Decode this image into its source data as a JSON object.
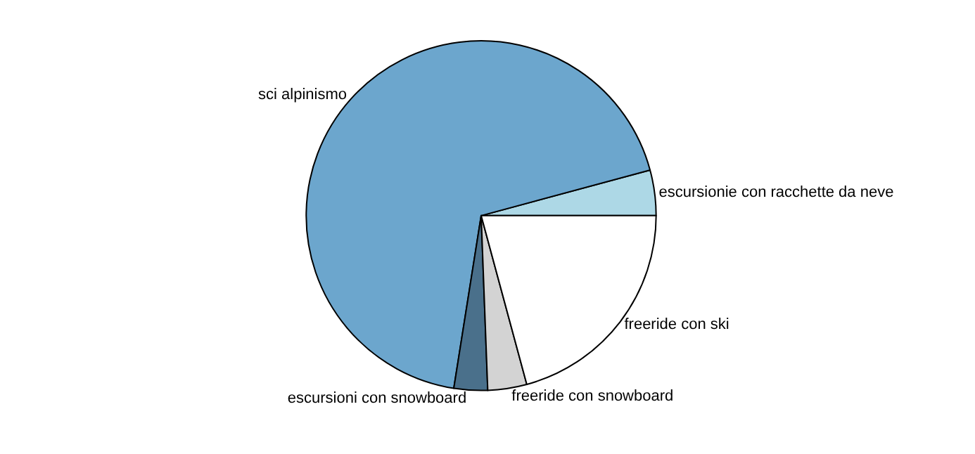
{
  "chart_data": {
    "type": "pie",
    "categories": [
      "escursionie con racchette da neve",
      "sci alpinismo",
      "escursioni con snowboard",
      "freeride con snowboard",
      "freeride con ski"
    ],
    "values": [
      4.2,
      68.3,
      3.1,
      3.6,
      20.8
    ],
    "colors": [
      "#add8e6",
      "#6ca6cd",
      "#4a708b",
      "#d3d3d3",
      "#ffffff"
    ]
  }
}
